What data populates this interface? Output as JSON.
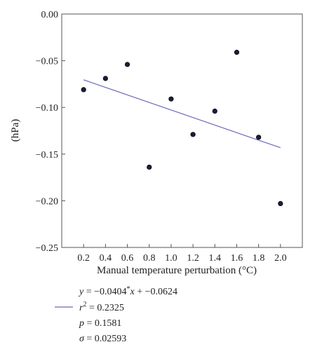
{
  "chart_data": {
    "type": "scatter",
    "title": "",
    "xlabel": "Manual temperature perturbation (°C)",
    "ylabel": "(hPa)",
    "xlim": [
      0,
      2.2
    ],
    "ylim": [
      -0.25,
      0.0
    ],
    "x_ticks": [
      0.2,
      0.4,
      0.6,
      0.8,
      1.0,
      1.2,
      1.4,
      1.6,
      1.8,
      2.0
    ],
    "x_tick_labels": [
      "0.2",
      "0.4",
      "0.6",
      "0.8",
      "1.0",
      "1.2",
      "1.4",
      "1.6",
      "1.8",
      "2.0"
    ],
    "y_ticks": [
      0.0,
      -0.05,
      -0.1,
      -0.15,
      -0.2,
      -0.25
    ],
    "y_tick_labels": [
      "0.00",
      "−0.05",
      "−0.10",
      "−0.15",
      "−0.20",
      "−0.25"
    ],
    "grid": false,
    "points": [
      {
        "x": 0.2,
        "y": -0.081
      },
      {
        "x": 0.4,
        "y": -0.069
      },
      {
        "x": 0.6,
        "y": -0.054
      },
      {
        "x": 0.8,
        "y": -0.164
      },
      {
        "x": 1.0,
        "y": -0.091
      },
      {
        "x": 1.2,
        "y": -0.129
      },
      {
        "x": 1.4,
        "y": -0.104
      },
      {
        "x": 1.6,
        "y": -0.041
      },
      {
        "x": 1.8,
        "y": -0.132
      },
      {
        "x": 2.0,
        "y": -0.203
      }
    ],
    "fit": {
      "slope": -0.0404,
      "intercept": -0.0624,
      "x_range": [
        0.2,
        2.0
      ]
    },
    "point_color": "#1c1c3a",
    "fit_color": "#6a68b8",
    "legend_placement": "bottom-left"
  },
  "legend": {
    "eq_y": "y",
    "eq_mid": " = −0.0404",
    "eq_x": "x",
    "eq_tail": " + −0.0624",
    "r2_r": "r",
    "r2_sup": "2",
    "r2_value": " = 0.2325",
    "p_sym": "p",
    "p_value": " = 0.1581",
    "sigma_sym": "σ",
    "sigma_value": " = 0.02593"
  }
}
